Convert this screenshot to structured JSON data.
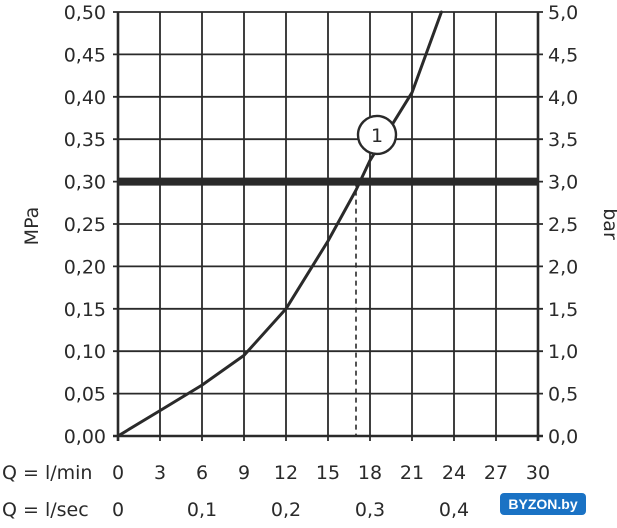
{
  "chart_data": {
    "type": "line",
    "ylabel_left": "MPa",
    "ylabel_right": "bar",
    "xlabel_lmin": "Q = l/min",
    "xlabel_lsec": "Q = l/sec",
    "xlim": [
      0,
      30
    ],
    "ylim": [
      0,
      0.5
    ],
    "y_ticks_left": [
      "0,00",
      "0,05",
      "0,10",
      "0,15",
      "0,20",
      "0,25",
      "0,30",
      "0,35",
      "0,40",
      "0,45",
      "0,50"
    ],
    "y_ticks_right": [
      "0,0",
      "0,5",
      "1,0",
      "1,5",
      "2,0",
      "2,5",
      "3,0",
      "3,5",
      "4,0",
      "4,5",
      "5,0"
    ],
    "x_ticks_lmin": [
      "0",
      "3",
      "6",
      "9",
      "12",
      "15",
      "18",
      "21",
      "24",
      "27",
      "30"
    ],
    "x_ticks_lsec": [
      {
        "value": 0,
        "label": "0"
      },
      {
        "value": 6,
        "label": "0,1"
      },
      {
        "value": 12,
        "label": "0,2"
      },
      {
        "value": 18,
        "label": "0,3"
      },
      {
        "value": 24,
        "label": "0,4"
      }
    ],
    "grid": true,
    "series": [
      {
        "x": [
          0,
          3,
          6,
          9,
          12,
          15,
          17,
          18,
          21,
          23.1
        ],
        "y": [
          0,
          0.03,
          0.06,
          0.095,
          0.15,
          0.23,
          0.29,
          0.325,
          0.405,
          0.5
        ]
      }
    ],
    "reference_line": {
      "y": 0.3
    },
    "marker": {
      "x": 17.0,
      "y": 0.3
    },
    "annotation": {
      "label": "1",
      "x": 18.5,
      "y": 0.355
    }
  },
  "watermark": "BYZON.by",
  "colors": {
    "line": "#2a2a2a",
    "grid": "#2a2a2a",
    "badge": "#1a72c4"
  }
}
